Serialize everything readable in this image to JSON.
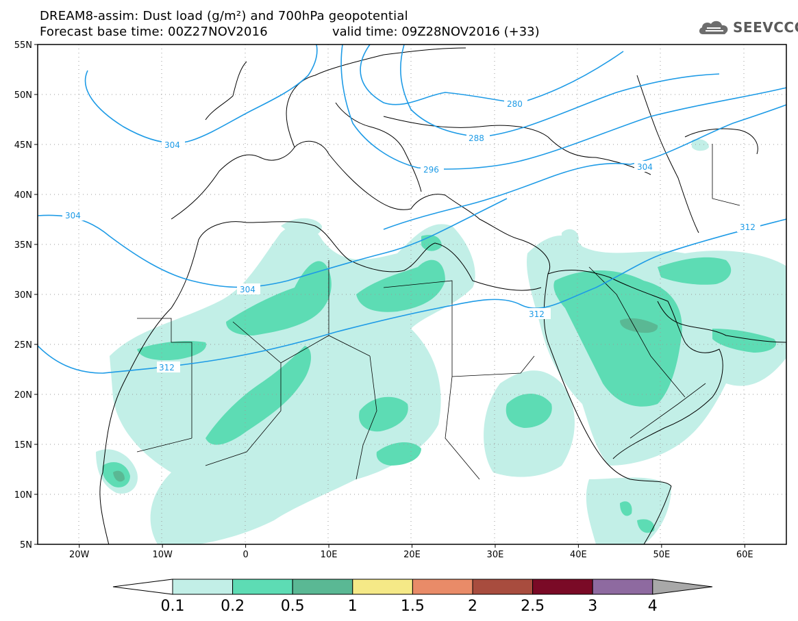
{
  "title": {
    "line1": "DREAM8-assim: Dust load (g/m²) and 700hPa geopotential",
    "line2_left": "Forecast base time: 00Z27NOV2016",
    "line2_right": "valid time: 09Z28NOV2016 (+33)"
  },
  "logo": {
    "text": "SEEVCCC",
    "icon": "cloud-icon"
  },
  "map": {
    "lon_range": [
      -25,
      65
    ],
    "lat_range": [
      5,
      55
    ],
    "lon_ticks": [
      {
        "value": -20,
        "label": "20W"
      },
      {
        "value": -10,
        "label": "10W"
      },
      {
        "value": 0,
        "label": "0"
      },
      {
        "value": 10,
        "label": "10E"
      },
      {
        "value": 20,
        "label": "20E"
      },
      {
        "value": 30,
        "label": "30E"
      },
      {
        "value": 40,
        "label": "40E"
      },
      {
        "value": 50,
        "label": "50E"
      },
      {
        "value": 60,
        "label": "60E"
      }
    ],
    "lat_ticks": [
      {
        "value": 55,
        "label": "55N"
      },
      {
        "value": 50,
        "label": "50N"
      },
      {
        "value": 45,
        "label": "45N"
      },
      {
        "value": 40,
        "label": "40N"
      },
      {
        "value": 35,
        "label": "35N"
      },
      {
        "value": 30,
        "label": "30N"
      },
      {
        "value": 25,
        "label": "25N"
      },
      {
        "value": 20,
        "label": "20N"
      },
      {
        "value": 15,
        "label": "15N"
      },
      {
        "value": 10,
        "label": "10N"
      },
      {
        "value": 5,
        "label": "5N"
      }
    ],
    "contour_color": "#1e9be6",
    "contour_labels": [
      "280",
      "288",
      "296",
      "304",
      "304",
      "304",
      "304",
      "312",
      "312",
      "312"
    ]
  },
  "colorbar": {
    "levels": [
      "0.1",
      "0.2",
      "0.5",
      "1",
      "1.5",
      "2",
      "2.5",
      "3",
      "4"
    ],
    "colors": [
      "#c2efe7",
      "#5ddcb4",
      "#5ab894",
      "#f5e987",
      "#e98b68",
      "#a84c3e",
      "#7a0a26",
      "#8e6aa0"
    ],
    "under_color": "#ffffff",
    "over_color": "#a8a8a8"
  }
}
